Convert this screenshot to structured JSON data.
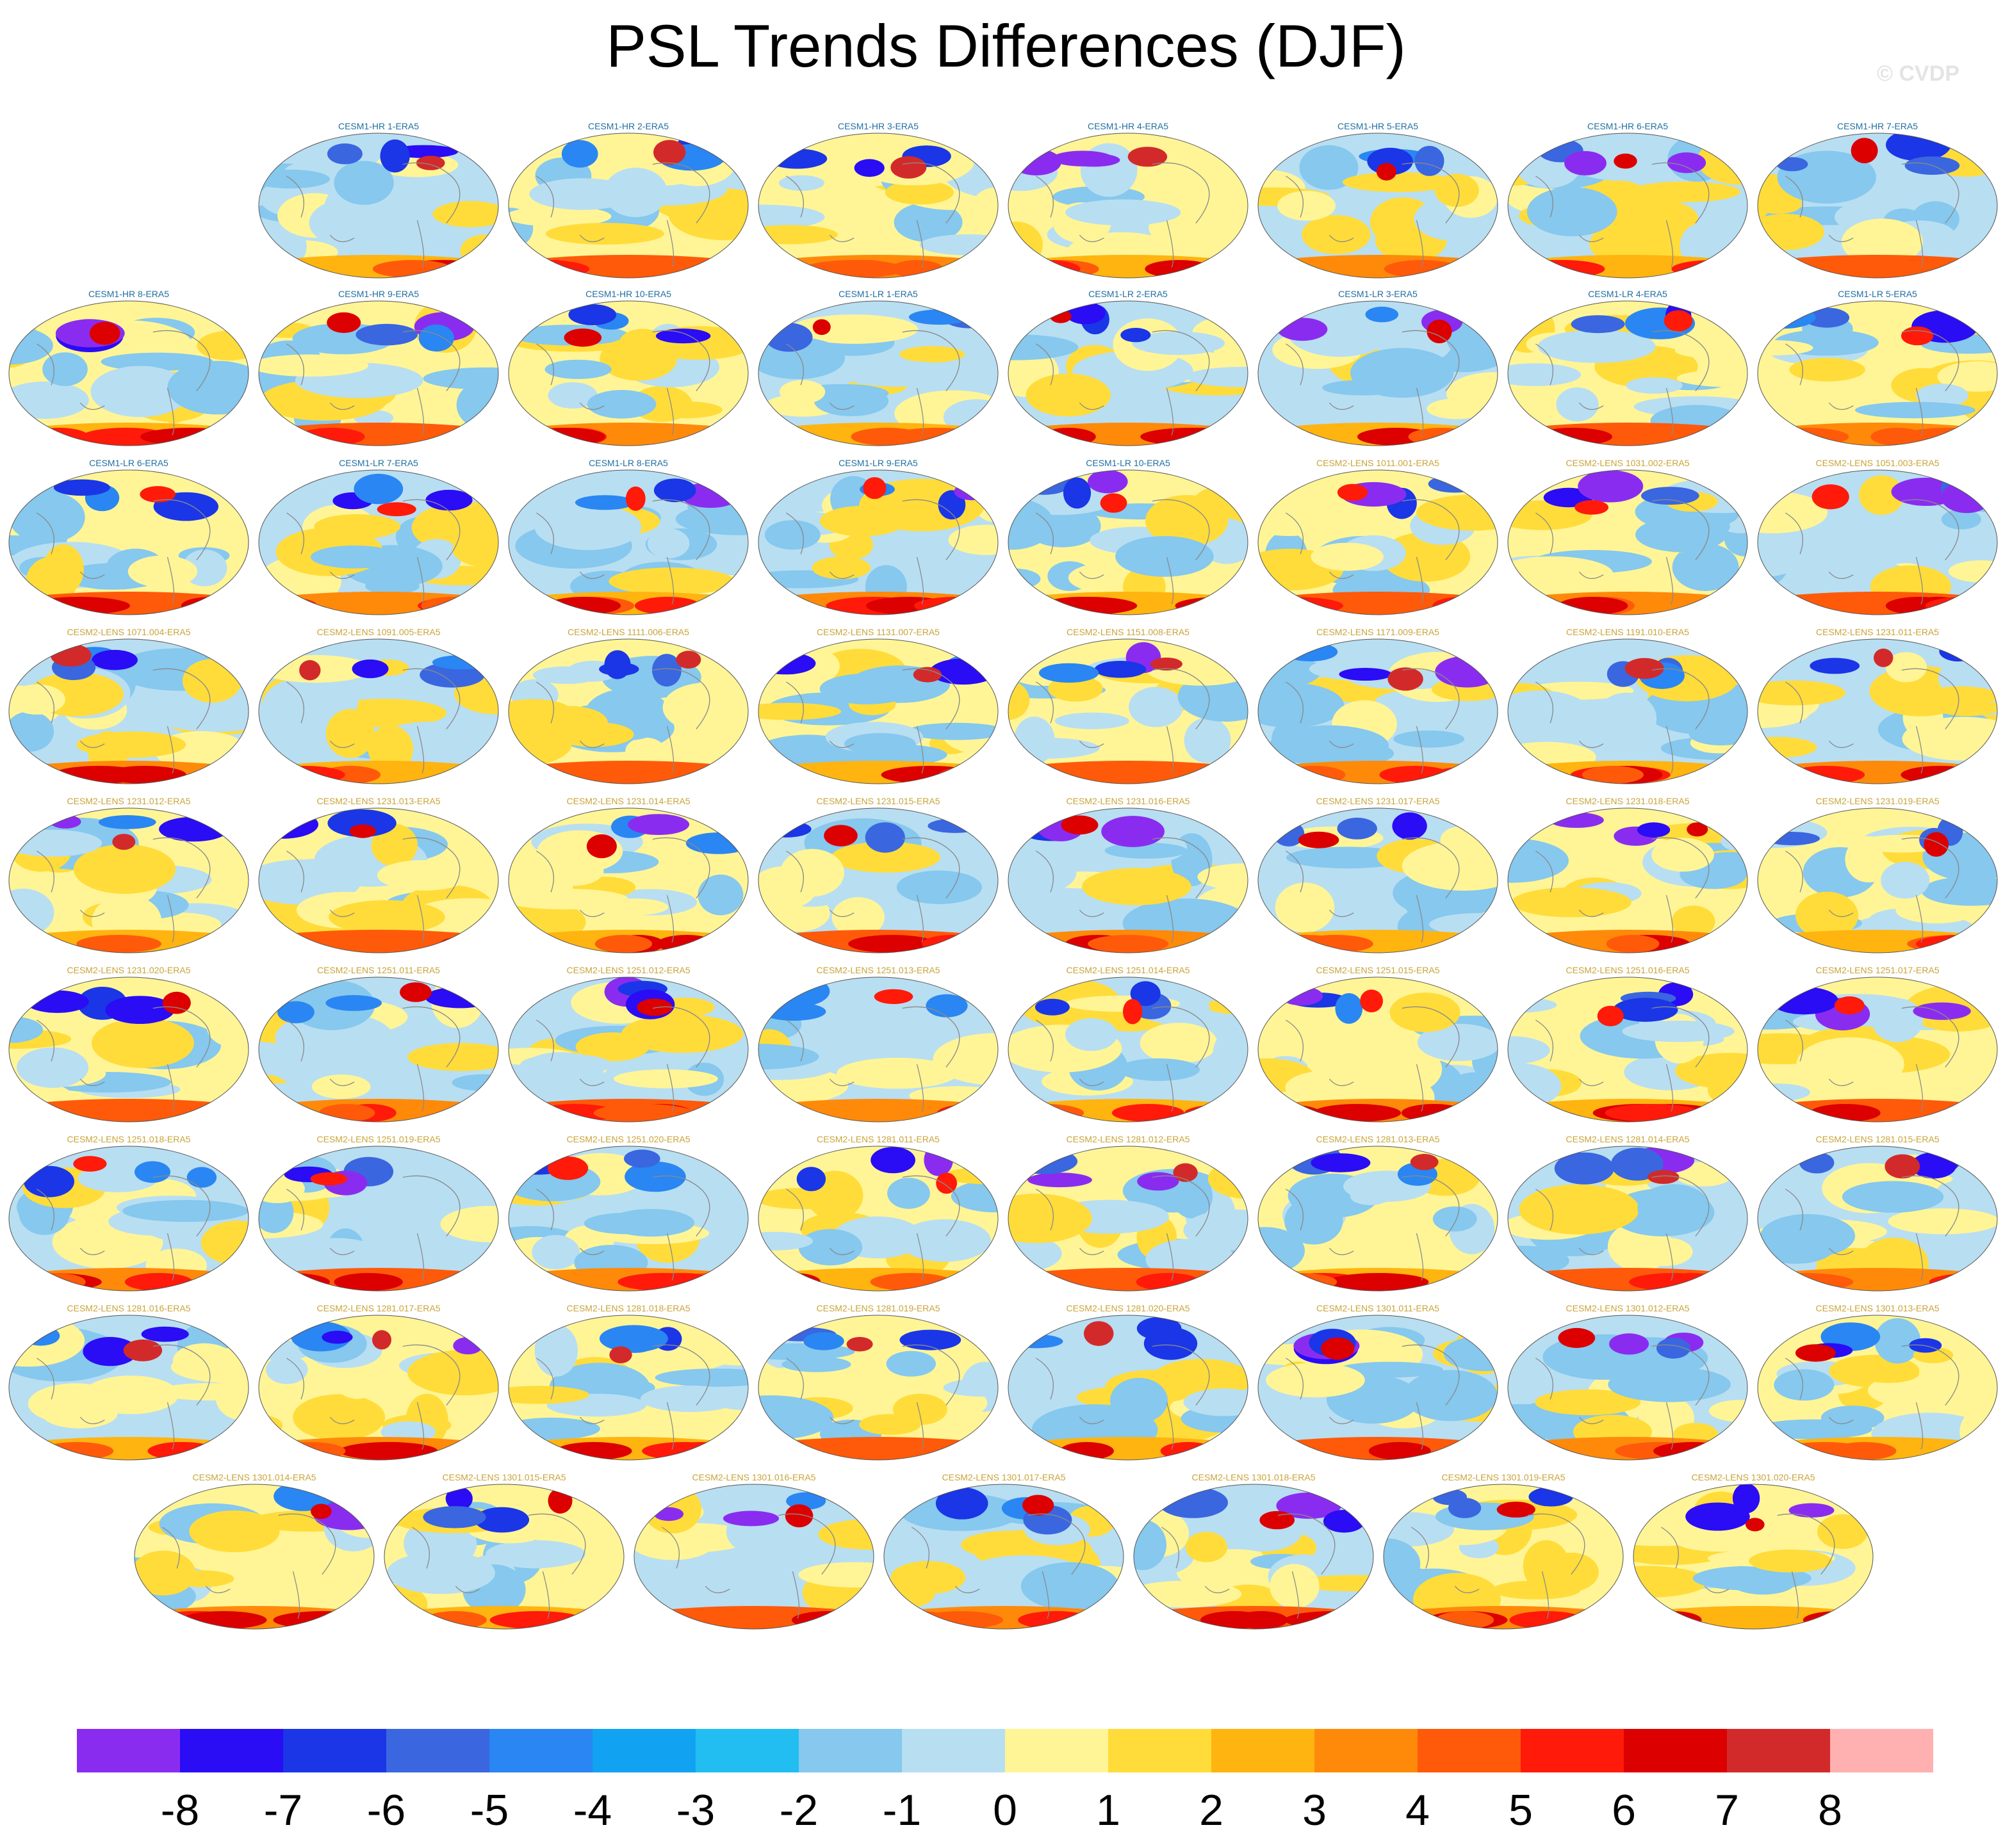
{
  "title": "PSL Trends Differences (DJF)",
  "watermark": "© CVDP",
  "colors": {
    "title_hr_lr": "#1f6fa0",
    "title_cesm2": "#c9a43a",
    "coast": "#8a8a8a",
    "background": "#ffffff"
  },
  "chart_data": {
    "type": "heatmap",
    "title": "PSL Trends Differences (DJF)",
    "projection": "global map (Robinson-like), one panel per ensemble member",
    "panels": [
      {
        "title": "CESM1-HR 1-ERA5",
        "series": "CESM1"
      },
      {
        "title": "CESM1-HR 2-ERA5",
        "series": "CESM1"
      },
      {
        "title": "CESM1-HR 3-ERA5",
        "series": "CESM1"
      },
      {
        "title": "CESM1-HR 4-ERA5",
        "series": "CESM1"
      },
      {
        "title": "CESM1-HR 5-ERA5",
        "series": "CESM1"
      },
      {
        "title": "CESM1-HR 6-ERA5",
        "series": "CESM1"
      },
      {
        "title": "CESM1-HR 7-ERA5",
        "series": "CESM1"
      },
      {
        "title": "CESM1-HR 8-ERA5",
        "series": "CESM1"
      },
      {
        "title": "CESM1-HR 9-ERA5",
        "series": "CESM1"
      },
      {
        "title": "CESM1-HR 10-ERA5",
        "series": "CESM1"
      },
      {
        "title": "CESM1-LR 1-ERA5",
        "series": "CESM1"
      },
      {
        "title": "CESM1-LR 2-ERA5",
        "series": "CESM1"
      },
      {
        "title": "CESM1-LR 3-ERA5",
        "series": "CESM1"
      },
      {
        "title": "CESM1-LR 4-ERA5",
        "series": "CESM1"
      },
      {
        "title": "CESM1-LR 5-ERA5",
        "series": "CESM1"
      },
      {
        "title": "CESM1-LR 6-ERA5",
        "series": "CESM1"
      },
      {
        "title": "CESM1-LR 7-ERA5",
        "series": "CESM1"
      },
      {
        "title": "CESM1-LR 8-ERA5",
        "series": "CESM1"
      },
      {
        "title": "CESM1-LR 9-ERA5",
        "series": "CESM1"
      },
      {
        "title": "CESM1-LR 10-ERA5",
        "series": "CESM1"
      },
      {
        "title": "CESM2-LENS 1011.001-ERA5",
        "series": "CESM2"
      },
      {
        "title": "CESM2-LENS 1031.002-ERA5",
        "series": "CESM2"
      },
      {
        "title": "CESM2-LENS 1051.003-ERA5",
        "series": "CESM2"
      },
      {
        "title": "CESM2-LENS 1071.004-ERA5",
        "series": "CESM2"
      },
      {
        "title": "CESM2-LENS 1091.005-ERA5",
        "series": "CESM2"
      },
      {
        "title": "CESM2-LENS 1111.006-ERA5",
        "series": "CESM2"
      },
      {
        "title": "CESM2-LENS 1131.007-ERA5",
        "series": "CESM2"
      },
      {
        "title": "CESM2-LENS 1151.008-ERA5",
        "series": "CESM2"
      },
      {
        "title": "CESM2-LENS 1171.009-ERA5",
        "series": "CESM2"
      },
      {
        "title": "CESM2-LENS 1191.010-ERA5",
        "series": "CESM2"
      },
      {
        "title": "CESM2-LENS 1231.011-ERA5",
        "series": "CESM2"
      },
      {
        "title": "CESM2-LENS 1231.012-ERA5",
        "series": "CESM2"
      },
      {
        "title": "CESM2-LENS 1231.013-ERA5",
        "series": "CESM2"
      },
      {
        "title": "CESM2-LENS 1231.014-ERA5",
        "series": "CESM2"
      },
      {
        "title": "CESM2-LENS 1231.015-ERA5",
        "series": "CESM2"
      },
      {
        "title": "CESM2-LENS 1231.016-ERA5",
        "series": "CESM2"
      },
      {
        "title": "CESM2-LENS 1231.017-ERA5",
        "series": "CESM2"
      },
      {
        "title": "CESM2-LENS 1231.018-ERA5",
        "series": "CESM2"
      },
      {
        "title": "CESM2-LENS 1231.019-ERA5",
        "series": "CESM2"
      },
      {
        "title": "CESM2-LENS 1231.020-ERA5",
        "series": "CESM2"
      },
      {
        "title": "CESM2-LENS 1251.011-ERA5",
        "series": "CESM2"
      },
      {
        "title": "CESM2-LENS 1251.012-ERA5",
        "series": "CESM2"
      },
      {
        "title": "CESM2-LENS 1251.013-ERA5",
        "series": "CESM2"
      },
      {
        "title": "CESM2-LENS 1251.014-ERA5",
        "series": "CESM2"
      },
      {
        "title": "CESM2-LENS 1251.015-ERA5",
        "series": "CESM2"
      },
      {
        "title": "CESM2-LENS 1251.016-ERA5",
        "series": "CESM2"
      },
      {
        "title": "CESM2-LENS 1251.017-ERA5",
        "series": "CESM2"
      },
      {
        "title": "CESM2-LENS 1251.018-ERA5",
        "series": "CESM2"
      },
      {
        "title": "CESM2-LENS 1251.019-ERA5",
        "series": "CESM2"
      },
      {
        "title": "CESM2-LENS 1251.020-ERA5",
        "series": "CESM2"
      },
      {
        "title": "CESM2-LENS 1281.011-ERA5",
        "series": "CESM2"
      },
      {
        "title": "CESM2-LENS 1281.012-ERA5",
        "series": "CESM2"
      },
      {
        "title": "CESM2-LENS 1281.013-ERA5",
        "series": "CESM2"
      },
      {
        "title": "CESM2-LENS 1281.014-ERA5",
        "series": "CESM2"
      },
      {
        "title": "CESM2-LENS 1281.015-ERA5",
        "series": "CESM2"
      },
      {
        "title": "CESM2-LENS 1281.016-ERA5",
        "series": "CESM2"
      },
      {
        "title": "CESM2-LENS 1281.017-ERA5",
        "series": "CESM2"
      },
      {
        "title": "CESM2-LENS 1281.018-ERA5",
        "series": "CESM2"
      },
      {
        "title": "CESM2-LENS 1281.019-ERA5",
        "series": "CESM2"
      },
      {
        "title": "CESM2-LENS 1281.020-ERA5",
        "series": "CESM2"
      },
      {
        "title": "CESM2-LENS 1301.011-ERA5",
        "series": "CESM2"
      },
      {
        "title": "CESM2-LENS 1301.012-ERA5",
        "series": "CESM2"
      },
      {
        "title": "CESM2-LENS 1301.013-ERA5",
        "series": "CESM2"
      },
      {
        "title": "CESM2-LENS 1301.014-ERA5",
        "series": "CESM2"
      },
      {
        "title": "CESM2-LENS 1301.015-ERA5",
        "series": "CESM2"
      },
      {
        "title": "CESM2-LENS 1301.016-ERA5",
        "series": "CESM2"
      },
      {
        "title": "CESM2-LENS 1301.017-ERA5",
        "series": "CESM2"
      },
      {
        "title": "CESM2-LENS 1301.018-ERA5",
        "series": "CESM2"
      },
      {
        "title": "CESM2-LENS 1301.019-ERA5",
        "series": "CESM2"
      },
      {
        "title": "CESM2-LENS 1301.020-ERA5",
        "series": "CESM2"
      }
    ],
    "colorbar": {
      "orientation": "horizontal",
      "tick_labels": [
        "-8",
        "-7",
        "-6",
        "-5",
        "-4",
        "-3",
        "-2",
        "-1",
        "0",
        "1",
        "2",
        "3",
        "4",
        "5",
        "6",
        "7",
        "8"
      ],
      "colors": [
        "#8a2cf0",
        "#2a0cf5",
        "#1a36e6",
        "#3a66e0",
        "#2a86f2",
        "#12a2f2",
        "#22bef2",
        "#86c8ee",
        "#b8def2",
        "#fff596",
        "#ffdc3a",
        "#ffb410",
        "#ff8a0a",
        "#ff5a0a",
        "#ff1a0a",
        "#dc0000",
        "#d22a2a",
        "#ffb0b0"
      ]
    }
  }
}
